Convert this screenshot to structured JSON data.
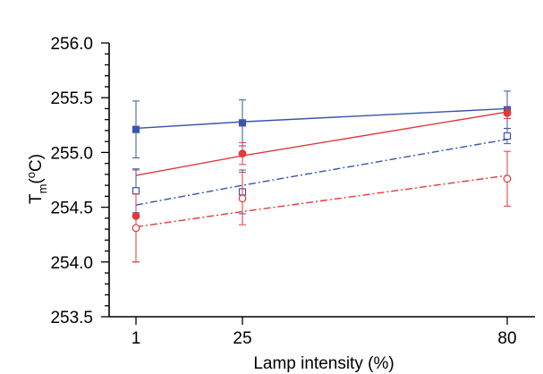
{
  "chart_data": {
    "type": "line",
    "xlabel": "Lamp intensity (%)",
    "ylabel": {
      "main": "T",
      "sub": "m",
      "unit_prefix": "(",
      "unit_sup": "o",
      "unit_suffix": "C)"
    },
    "x_ticks": [
      1,
      25,
      80
    ],
    "y_ticks": [
      "253.5",
      "254.0",
      "254.5",
      "255.0",
      "255.5",
      "256.0"
    ],
    "ylim": [
      253.5,
      256.0
    ],
    "x_scale": "categorical-log-like",
    "grid": false,
    "series": [
      {
        "color": "#3a56a8",
        "marker": "filled-square",
        "line": "solid",
        "x": [
          1,
          25,
          80
        ],
        "y": [
          255.21,
          255.27,
          255.39
        ],
        "err": [
          0.26,
          0.21,
          0.17
        ],
        "fit": [
          255.22,
          255.28,
          255.4
        ]
      },
      {
        "color": "#e03a3a",
        "marker": "filled-circle",
        "line": "solid",
        "x": [
          1,
          25,
          80
        ],
        "y": [
          254.42,
          254.99,
          255.36
        ],
        "err": [
          0.42,
          0.1,
          0.05
        ],
        "fit": [
          254.79,
          254.97,
          255.37
        ]
      },
      {
        "color": "#3a56a8",
        "marker": "open-square",
        "line": "dashdot",
        "x": [
          1,
          25,
          80
        ],
        "y": [
          254.65,
          254.64,
          255.15
        ],
        "err": [
          0.2,
          0.2,
          0.07
        ],
        "fit": [
          254.52,
          254.7,
          255.12
        ]
      },
      {
        "color": "#e03a3a",
        "marker": "open-circle",
        "line": "dashdot",
        "x": [
          1,
          25,
          80
        ],
        "y": [
          254.31,
          254.58,
          254.76
        ],
        "err": [
          0.31,
          0.24,
          0.25
        ],
        "fit": [
          254.32,
          254.46,
          254.79
        ]
      }
    ]
  }
}
